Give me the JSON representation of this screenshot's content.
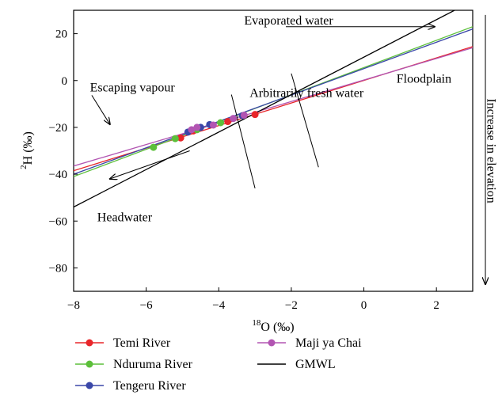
{
  "chart_data": {
    "type": "scatter",
    "xlabel_sup": "18",
    "xlabel": "O (‰)",
    "ylabel_sup": "2",
    "ylabel": "H (‰)",
    "xlim": [
      -8,
      3
    ],
    "ylim": [
      -90,
      30
    ],
    "xticks": [
      -8,
      -6,
      -4,
      -2,
      0,
      2
    ],
    "yticks": [
      20,
      0,
      -20,
      -40,
      -60,
      -80
    ],
    "grid": false,
    "legend_position": "bottom",
    "series": [
      {
        "name": "Temi River",
        "color": "#e8262a",
        "points": [
          [
            -5.05,
            -24.5
          ],
          [
            -4.7,
            -21.5
          ],
          [
            -3.75,
            -17.5
          ],
          [
            -3.0,
            -14.5
          ]
        ],
        "line": [
          [
            -8,
            -38.5
          ],
          [
            3,
            14.5
          ]
        ]
      },
      {
        "name": "Nduruma River",
        "color": "#5cbf3a",
        "points": [
          [
            -5.8,
            -28.5
          ],
          [
            -5.2,
            -24.8
          ],
          [
            -4.6,
            -21.0
          ],
          [
            -3.95,
            -18.0
          ]
        ],
        "line": [
          [
            -8,
            -41
          ],
          [
            3,
            23
          ]
        ]
      },
      {
        "name": "Tengeru River",
        "color": "#3a47a8",
        "points": [
          [
            -4.85,
            -22.0
          ],
          [
            -4.5,
            -20.0
          ],
          [
            -4.25,
            -18.8
          ],
          [
            -3.35,
            -15.0
          ]
        ],
        "line": [
          [
            -8,
            -40
          ],
          [
            3,
            22
          ]
        ]
      },
      {
        "name": "Maji ya Chai",
        "color": "#b255b2",
        "points": [
          [
            -4.75,
            -21.0
          ],
          [
            -4.6,
            -20.0
          ],
          [
            -4.15,
            -19.0
          ],
          [
            -3.6,
            -16.2
          ],
          [
            -3.3,
            -14.8
          ]
        ],
        "line": [
          [
            -8,
            -36.5
          ],
          [
            3,
            14
          ]
        ]
      },
      {
        "name": "GMWL",
        "color": "#000000",
        "points": [],
        "line": [
          [
            -8,
            -54
          ],
          [
            2.5,
            30
          ]
        ]
      }
    ],
    "annotations": [
      {
        "text": "Evaporated water",
        "x": -3.3,
        "y": 24
      },
      {
        "text": "Floodplain",
        "x": 0.9,
        "y": -1
      },
      {
        "text": "Escaping vapour",
        "x": -7.55,
        "y": -4.6
      },
      {
        "text": "Arbitrarily fresh water",
        "x": -3.15,
        "y": -7.0
      },
      {
        "text": "Headwater",
        "x": -7.35,
        "y": -60
      },
      {
        "text": "Increase in elevation",
        "x": 3.4,
        "y": -30
      }
    ],
    "arrows": [
      {
        "from": [
          -2.15,
          23
        ],
        "to": [
          1.95,
          23
        ]
      },
      {
        "from": [
          -7.5,
          -6.3
        ],
        "to": [
          -7.0,
          -18.7
        ]
      },
      {
        "from": [
          -4.8,
          -30
        ],
        "to": [
          -7.0,
          -42
        ]
      },
      {
        "from": [
          3.35,
          28
        ],
        "to": [
          3.35,
          -87
        ]
      }
    ],
    "cross_lines": [
      {
        "from": [
          -3.65,
          -6
        ],
        "to": [
          -3.0,
          -46
        ]
      },
      {
        "from": [
          -2.0,
          3
        ],
        "to": [
          -1.25,
          -37
        ]
      }
    ]
  }
}
